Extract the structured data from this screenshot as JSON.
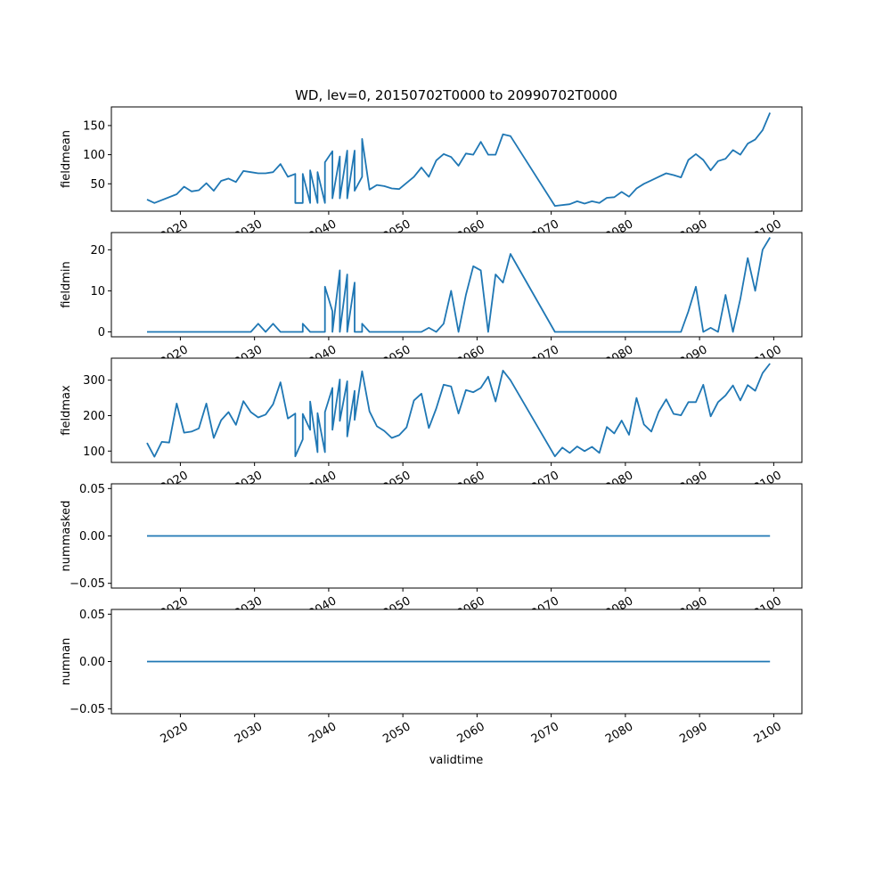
{
  "title": "WD, lev=0, 20150702T0000 to 20990702T0000",
  "colors": {
    "line": "#1f77b4"
  },
  "chart_data": {
    "type": "line",
    "xlabel": "validtime",
    "xlim": [
      2010.7,
      2103.8
    ],
    "x_ticks": [
      2020,
      2030,
      2040,
      2050,
      2060,
      2070,
      2080,
      2090,
      2100
    ],
    "x_tick_labels": [
      "2020",
      "2030",
      "2040",
      "2050",
      "2060",
      "2070",
      "2080",
      "2090",
      "2100"
    ],
    "panels": [
      {
        "ylabel": "fieldmean",
        "ylim": [
          3,
          182
        ],
        "y_ticks": [
          50,
          100,
          150
        ],
        "y_tick_labels": [
          "50",
          "100",
          "150"
        ],
        "x": [
          2015.5,
          2016.5,
          2019.5,
          2020.5,
          2021.5,
          2022.5,
          2023.5,
          2024.5,
          2025.5,
          2026.5,
          2027.5,
          2028.5,
          2029.5,
          2030.5,
          2031.5,
          2032.5,
          2033.5,
          2034.5,
          2035.5,
          2035.5,
          2036.5,
          2036.5,
          2037.5,
          2037.5,
          2038.5,
          2038.5,
          2039.5,
          2039.5,
          2040.5,
          2040.5,
          2041.5,
          2041.5,
          2042.5,
          2042.5,
          2043.5,
          2043.5,
          2044.5,
          2044.5,
          2045.5,
          2046.5,
          2047.5,
          2048.5,
          2049.5,
          2051.5,
          2052.5,
          2053.5,
          2054.5,
          2055.5,
          2056.5,
          2057.5,
          2058.5,
          2059.5,
          2060.5,
          2061.5,
          2062.5,
          2063.5,
          2064.5,
          2070.5,
          2072.5,
          2073.5,
          2074.5,
          2075.5,
          2076.5,
          2077.5,
          2078.5,
          2079.5,
          2080.5,
          2081.5,
          2082.5,
          2083.5,
          2084.5,
          2085.5,
          2086.5,
          2087.5,
          2088.5,
          2089.5,
          2090.5,
          2091.5,
          2092.5,
          2093.5,
          2094.5,
          2095.5,
          2096.5,
          2097.5,
          2098.5,
          2099.5
        ],
        "values": [
          23,
          17,
          32,
          45,
          37,
          39,
          51,
          38,
          55,
          59,
          53,
          72,
          70,
          68,
          68,
          70,
          84,
          62,
          67,
          17,
          17,
          67,
          17,
          73,
          17,
          70,
          17,
          87,
          106,
          25,
          97,
          25,
          107,
          25,
          107,
          38,
          62,
          127,
          40,
          48,
          46,
          42,
          41,
          62,
          78,
          62,
          90,
          101,
          96,
          81,
          102,
          100,
          122,
          100,
          100,
          135,
          132,
          12,
          15,
          20,
          16,
          20,
          17,
          26,
          27,
          36,
          28,
          42,
          50,
          56,
          62,
          68,
          65,
          61,
          91,
          101,
          91,
          73,
          89,
          93,
          108,
          100,
          119,
          126,
          142,
          172
        ]
      },
      {
        "ylabel": "fieldmin",
        "ylim": [
          -1.2,
          24.2
        ],
        "y_ticks": [
          0,
          10,
          20
        ],
        "y_tick_labels": [
          "0",
          "10",
          "20"
        ],
        "x": [
          2015.5,
          2029.5,
          2030.5,
          2031.5,
          2032.5,
          2033.5,
          2036.5,
          2036.5,
          2037.5,
          2038.5,
          2039.5,
          2039.5,
          2040.5,
          2040.5,
          2041.5,
          2041.5,
          2042.5,
          2042.5,
          2043.5,
          2043.5,
          2044.5,
          2044.5,
          2045.5,
          2052.5,
          2053.5,
          2054.5,
          2055.5,
          2056.5,
          2057.5,
          2058.5,
          2059.5,
          2060.5,
          2061.5,
          2062.5,
          2063.5,
          2064.5,
          2070.5,
          2087.5,
          2088.5,
          2089.5,
          2090.5,
          2091.5,
          2092.5,
          2093.5,
          2094.5,
          2095.5,
          2096.5,
          2097.5,
          2098.5,
          2099.5
        ],
        "values": [
          0,
          0,
          2,
          0,
          2,
          0,
          0,
          2,
          0,
          0,
          0,
          11,
          5,
          0,
          15,
          0,
          14,
          0,
          12,
          0,
          0,
          2,
          0,
          0,
          1,
          0,
          2,
          10,
          0,
          9,
          16,
          15,
          0,
          14,
          12,
          19,
          0,
          0,
          5,
          11,
          0,
          1,
          0,
          9,
          0,
          8,
          18,
          10,
          20,
          23
        ]
      },
      {
        "ylabel": "fieldmax",
        "ylim": [
          68,
          362
        ],
        "y_ticks": [
          100,
          200,
          300
        ],
        "y_tick_labels": [
          "100",
          "200",
          "300"
        ],
        "x": [
          2015.5,
          2016.5,
          2017.5,
          2018.5,
          2019.5,
          2020.5,
          2021.5,
          2022.5,
          2023.5,
          2024.5,
          2025.5,
          2026.5,
          2027.5,
          2028.5,
          2029.5,
          2030.5,
          2031.5,
          2032.5,
          2033.5,
          2034.5,
          2035.5,
          2035.5,
          2036.5,
          2036.5,
          2037.5,
          2037.5,
          2038.5,
          2038.5,
          2039.5,
          2039.5,
          2040.5,
          2040.5,
          2041.5,
          2041.5,
          2042.5,
          2042.5,
          2043.5,
          2043.5,
          2044.5,
          2045.5,
          2046.5,
          2047.5,
          2048.5,
          2049.5,
          2050.5,
          2051.5,
          2052.5,
          2053.5,
          2054.5,
          2055.5,
          2056.5,
          2057.5,
          2058.5,
          2059.5,
          2060.5,
          2061.5,
          2062.5,
          2063.5,
          2064.5,
          2070.5,
          2071.5,
          2072.5,
          2073.5,
          2074.5,
          2075.5,
          2076.5,
          2077.5,
          2078.5,
          2079.5,
          2080.5,
          2081.5,
          2082.5,
          2083.5,
          2084.5,
          2085.5,
          2086.5,
          2087.5,
          2088.5,
          2089.5,
          2090.5,
          2091.5,
          2092.5,
          2093.5,
          2094.5,
          2095.5,
          2096.5,
          2097.5,
          2098.5,
          2099.5
        ],
        "values": [
          123,
          84,
          126,
          124,
          234,
          152,
          155,
          164,
          234,
          137,
          187,
          210,
          174,
          241,
          210,
          195,
          203,
          232,
          294,
          192,
          206,
          85,
          133,
          205,
          160,
          240,
          97,
          207,
          97,
          210,
          278,
          160,
          302,
          185,
          297,
          141,
          270,
          188,
          325,
          212,
          170,
          157,
          137,
          145,
          167,
          243,
          262,
          165,
          220,
          287,
          282,
          206,
          272,
          266,
          278,
          310,
          240,
          327,
          300,
          85,
          110,
          95,
          113,
          100,
          112,
          95,
          168,
          150,
          186,
          146,
          250,
          175,
          155,
          211,
          246,
          205,
          201,
          238,
          238,
          287,
          198,
          238,
          257,
          285,
          243,
          286,
          270,
          320,
          347
        ]
      },
      {
        "ylabel": "nummasked",
        "ylim": [
          -0.055,
          0.055
        ],
        "y_ticks": [
          -0.05,
          0,
          0.05
        ],
        "y_tick_labels": [
          "−0.05",
          "0.00",
          "0.05"
        ],
        "x": [
          2015.5,
          2099.5
        ],
        "values": [
          0,
          0
        ]
      },
      {
        "ylabel": "numnan",
        "ylim": [
          -0.055,
          0.055
        ],
        "y_ticks": [
          -0.05,
          0,
          0.05
        ],
        "y_tick_labels": [
          "−0.05",
          "0.00",
          "0.05"
        ],
        "x": [
          2015.5,
          2099.5
        ],
        "values": [
          0,
          0
        ]
      }
    ]
  }
}
